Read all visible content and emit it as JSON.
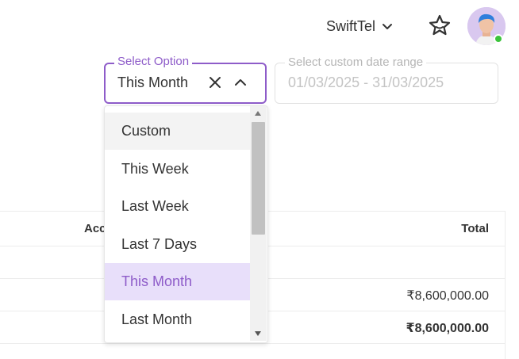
{
  "header": {
    "org_name": "SwiftTel",
    "status_color": "#3bc33b"
  },
  "filter": {
    "select_label": "Select Option",
    "selected_value": "This Month",
    "date_label": "Select custom date range",
    "date_value": "01/03/2025 - 31/03/2025",
    "accent_color": "#8e5cc9"
  },
  "dropdown": {
    "options": [
      "Custom",
      "This Week",
      "Last Week",
      "Last 7 Days",
      "This Month",
      "Last Month"
    ],
    "hovered": "Custom",
    "selected": "This Month"
  },
  "table": {
    "headers": {
      "account": "Acc",
      "total": "Total"
    },
    "rows": [
      {
        "total": ""
      },
      {
        "total": "₹8,600,000.00"
      },
      {
        "total": "₹8,600,000.00"
      }
    ]
  }
}
